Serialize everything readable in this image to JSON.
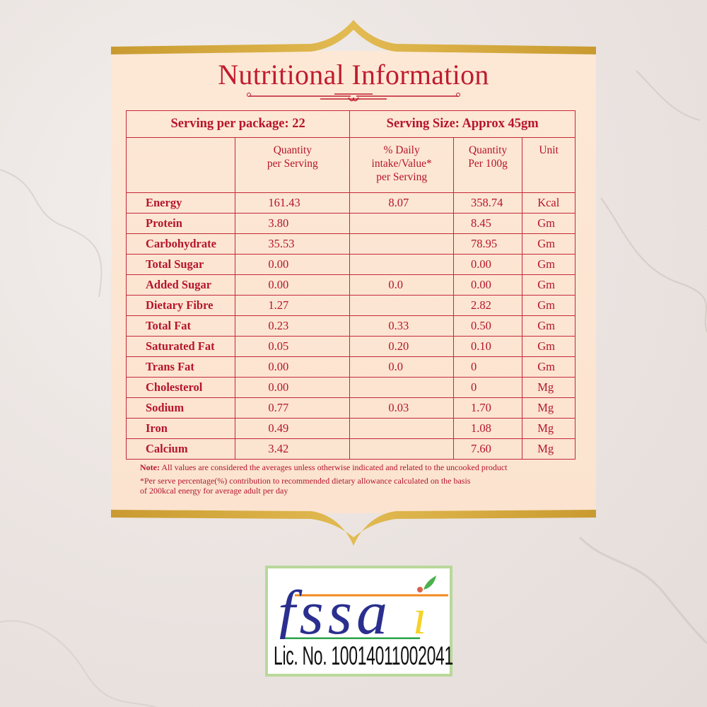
{
  "title": "Nutritional Information",
  "serving_per_package": "Serving per package: 22",
  "serving_size": "Serving Size: Approx 45gm",
  "columns": [
    "",
    "Quantity per Serving",
    "% Daily intake/Value* per Serving",
    "Quantity Per 100g",
    "Unit"
  ],
  "column_lines": [
    [
      "",
      ""
    ],
    [
      "Quantity",
      "per Serving"
    ],
    [
      "% Daily",
      "intake/Value*",
      "per Serving"
    ],
    [
      "Quantity",
      "Per 100g"
    ],
    [
      "Unit"
    ]
  ],
  "rows": [
    [
      "Energy",
      "161.43",
      "8.07",
      "358.74",
      "Kcal"
    ],
    [
      "Protein",
      "3.80",
      "",
      "8.45",
      "Gm"
    ],
    [
      "Carbohydrate",
      "35.53",
      "",
      "78.95",
      "Gm"
    ],
    [
      "Total Sugar",
      "0.00",
      "",
      "0.00",
      "Gm"
    ],
    [
      "Added Sugar",
      "0.00",
      "0.0",
      "0.00",
      "Gm"
    ],
    [
      "Dietary Fibre",
      "1.27",
      "",
      "2.82",
      "Gm"
    ],
    [
      "Total Fat",
      "0.23",
      "0.33",
      "0.50",
      "Gm"
    ],
    [
      "Saturated Fat",
      "0.05",
      "0.20",
      "0.10",
      "Gm"
    ],
    [
      "Trans Fat",
      "0.00",
      "0.0",
      "0",
      "Gm"
    ],
    [
      "Cholesterol",
      "0.00",
      "",
      "0",
      "Mg"
    ],
    [
      "Sodium",
      "0.77",
      "0.03",
      "1.70",
      "Mg"
    ],
    [
      "Iron",
      "0.49",
      "",
      "1.08",
      "Mg"
    ],
    [
      "Calcium",
      "3.42",
      "",
      "7.60",
      "Mg"
    ]
  ],
  "notes": {
    "note_label": "Note:",
    "note_text": " All values are considered the averages unless otherwise indicated and related to the uncooked product",
    "footnote_line1": "*Per serve percentage(%) contribution to recommended dietary allowance calculated on the basis",
    "footnote_line2": "of 200kcal energy for average adult per day"
  },
  "fssai": {
    "logo_text": "fssai",
    "license": "Lic. No. 10014011002041"
  },
  "colors": {
    "text": "#b5152b",
    "gold": "#d4a940",
    "card": "#fde9d8",
    "lines": "#c4283a"
  }
}
